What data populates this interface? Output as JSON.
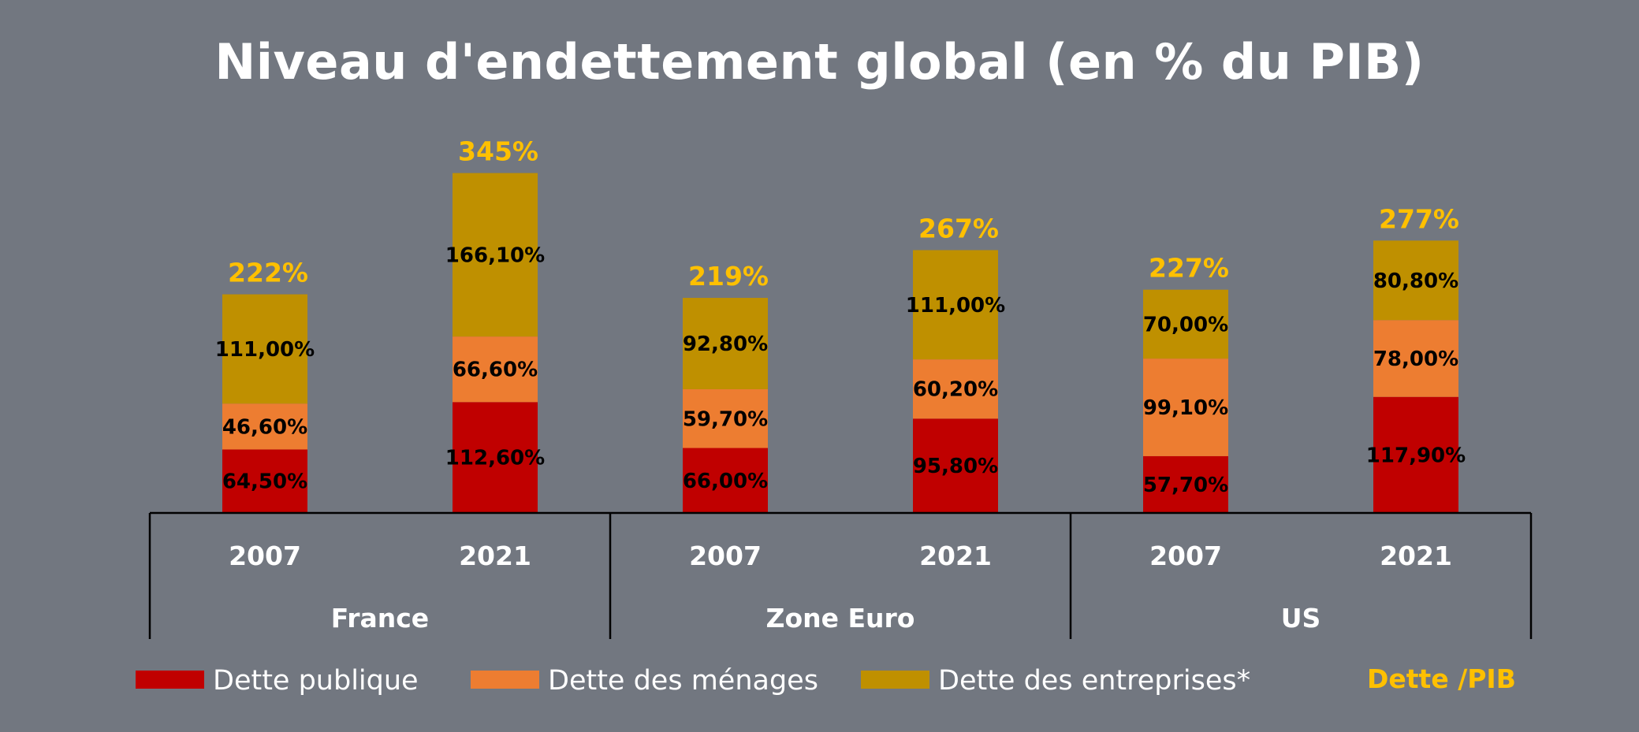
{
  "colors": {
    "background": "#727780",
    "dette_publique": "#C00000",
    "dette_menages": "#ED7D31",
    "dette_entreprises": "#BF9000",
    "ratio": "#FFC000",
    "axis": "#000000",
    "text_light": "#FFFFFF"
  },
  "chart_data": {
    "type": "bar",
    "stacked": true,
    "title": "Niveau d'endettement global (en % du PIB)",
    "groups": [
      "France",
      "Zone Euro",
      "US"
    ],
    "categories": [
      {
        "group": "France",
        "year": "2007"
      },
      {
        "group": "France",
        "year": "2021"
      },
      {
        "group": "Zone Euro",
        "year": "2007"
      },
      {
        "group": "Zone Euro",
        "year": "2021"
      },
      {
        "group": "US",
        "year": "2007"
      },
      {
        "group": "US",
        "year": "2021"
      }
    ],
    "series": [
      {
        "name": "Dette publique",
        "color_key": "dette_publique",
        "values": [
          64.5,
          112.6,
          66.0,
          95.8,
          57.7,
          117.9
        ],
        "labels": [
          "64,50%",
          "112,60%",
          "66,00%",
          "95,80%",
          "57,70%",
          "117,90%"
        ]
      },
      {
        "name": "Dette des ménages",
        "color_key": "dette_menages",
        "values": [
          46.6,
          66.6,
          59.7,
          60.2,
          99.1,
          78.0
        ],
        "labels": [
          "46,60%",
          "66,60%",
          "59,70%",
          "60,20%",
          "99,10%",
          "78,00%"
        ]
      },
      {
        "name": "Dette des entreprises*",
        "color_key": "dette_entreprises",
        "values": [
          111.0,
          166.1,
          92.8,
          111.0,
          70.0,
          80.8
        ],
        "labels": [
          "111,00%",
          "166,10%",
          "92,80%",
          "111,00%",
          "70,00%",
          "80,80%"
        ]
      }
    ],
    "totals": {
      "name": "Dette /PIB",
      "values": [
        222,
        345,
        219,
        267,
        227,
        277
      ],
      "labels": [
        "222%",
        "345%",
        "219%",
        "267%",
        "227%",
        "277%"
      ]
    },
    "ylim": [
      0,
      345
    ],
    "grid": false,
    "legend_position": "bottom"
  }
}
